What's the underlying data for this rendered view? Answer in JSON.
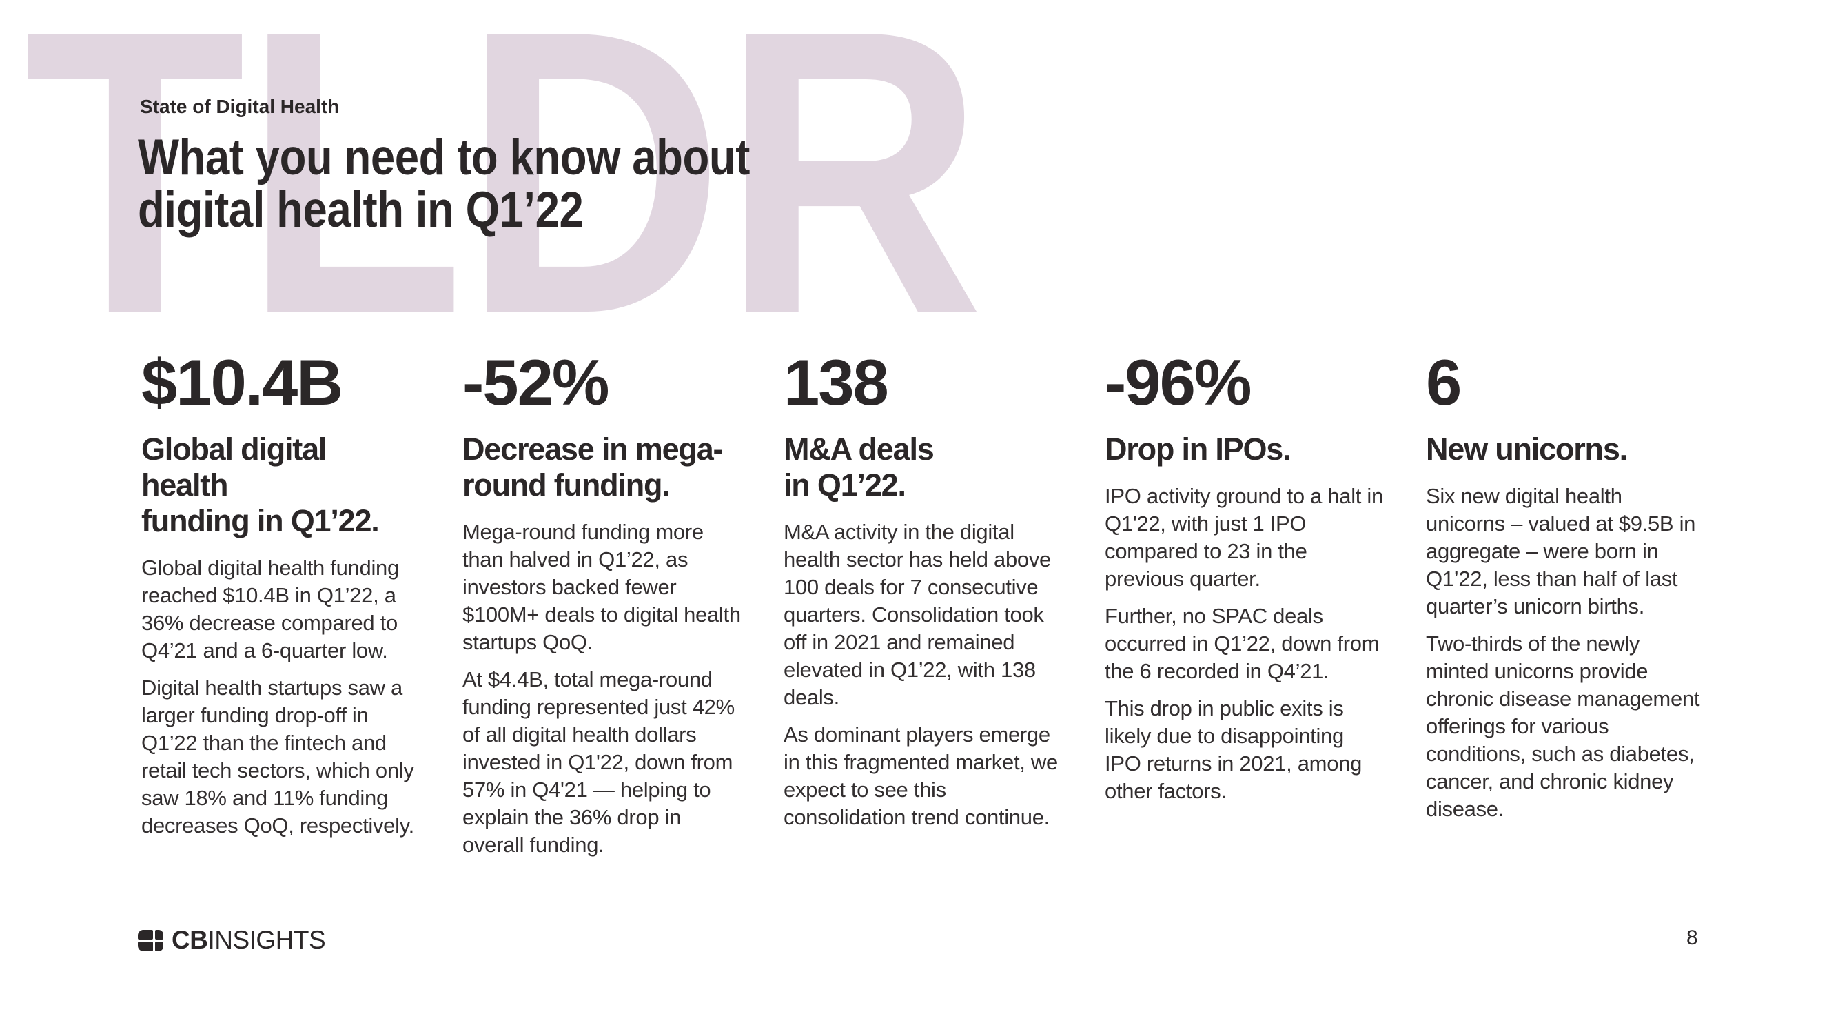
{
  "backdrop": {
    "word": "TLDR",
    "color": "#e1d6e0"
  },
  "header": {
    "eyebrow": "State of Digital Health",
    "title": "What you need to know about\ndigital health in Q1’22"
  },
  "columns": [
    {
      "stat": "$10.4B",
      "heading": "Global digital health\nfunding in Q1’22.",
      "paragraphs": [
        "Global digital health funding reached $10.4B in Q1’22, a 36% decrease compared to Q4’21 and a 6-quarter low.",
        "Digital health startups saw a larger funding drop-off in Q1’22 than the fintech and retail tech sectors, which only saw 18% and 11% funding decreases QoQ, respectively."
      ]
    },
    {
      "stat": "-52%",
      "heading": "Decrease in mega-\nround funding.",
      "paragraphs": [
        "Mega-round funding more than halved in Q1’22, as investors backed fewer $100M+ deals to digital health startups QoQ.",
        "At $4.4B, total mega-round funding represented just 42% of all digital health dollars invested in Q1'22, down from 57% in Q4'21 — helping to explain the 36% drop in overall funding."
      ]
    },
    {
      "stat": "138",
      "heading": "M&A deals\nin Q1’22.",
      "paragraphs": [
        "M&A activity in the digital health sector has held above 100 deals for 7 consecutive quarters. Consolidation took off in 2021 and remained elevated in Q1’22, with 138 deals.",
        "As dominant players emerge in this fragmented market, we expect to see this consolidation trend continue."
      ]
    },
    {
      "stat": "-96%",
      "heading": "Drop in IPOs.",
      "paragraphs": [
        "IPO activity ground to a halt in Q1'22, with just 1 IPO compared to 23 in the previous quarter.",
        "Further, no SPAC deals occurred in Q1’22, down from the 6 recorded in Q4’21.",
        "This drop in public exits is likely due to disappointing IPO returns in 2021, among other factors."
      ]
    },
    {
      "stat": "6",
      "heading": "New unicorns.",
      "paragraphs": [
        "Six new digital health unicorns – valued at $9.5B in aggregate – were born in Q1’22, less than half of last quarter’s unicorn births.",
        "Two-thirds of the newly minted unicorns provide chronic disease management offerings for various conditions, such as diabetes, cancer, and chronic kidney disease."
      ]
    }
  ],
  "footer": {
    "logo_bold": "CB",
    "logo_regular": "INSIGHTS",
    "page_number": "8"
  }
}
